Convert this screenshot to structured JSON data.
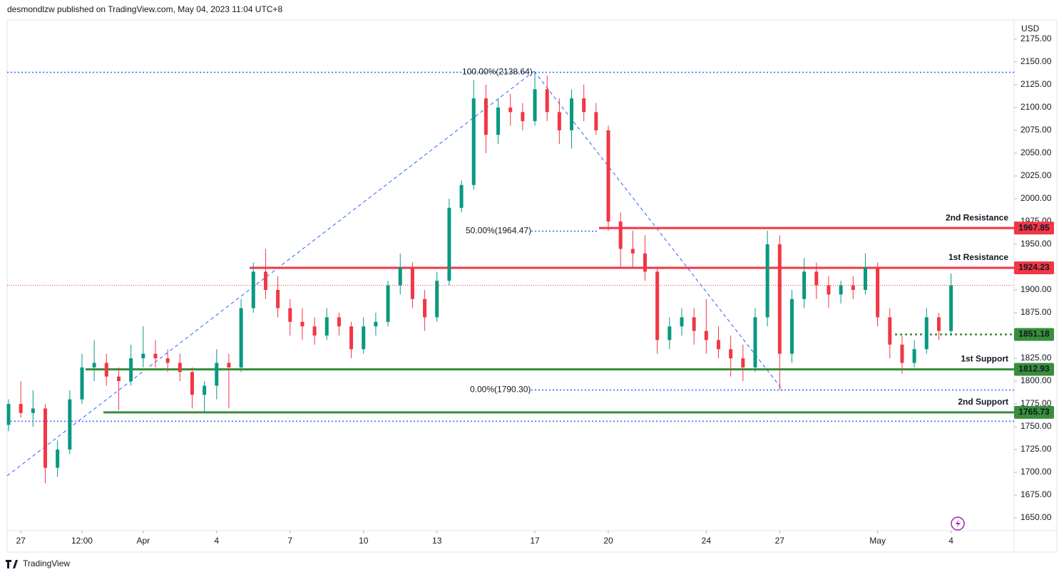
{
  "chart_data": {
    "type": "candlestick",
    "header": "desmondlzw published on TradingView.com, May 04, 2023 11:04 UTC+8",
    "currency": "USD",
    "brand": "TradingView",
    "up_color": "#089981",
    "down_color": "#f23645",
    "ylim": [
      1636,
      2196
    ],
    "yticks": [
      {
        "value": 1650,
        "label": "1650.00"
      },
      {
        "value": 1675,
        "label": "1675.00"
      },
      {
        "value": 1700,
        "label": "1700.00"
      },
      {
        "value": 1725,
        "label": "1725.00"
      },
      {
        "value": 1750,
        "label": "1750.00"
      },
      {
        "value": 1775,
        "label": "1775.00"
      },
      {
        "value": 1800,
        "label": "1800.00"
      },
      {
        "value": 1825,
        "label": "1825.00"
      },
      {
        "value": 1850,
        "label": "1850.00"
      },
      {
        "value": 1875,
        "label": "1875.00"
      },
      {
        "value": 1900,
        "label": "1900.00"
      },
      {
        "value": 1925,
        "label": "1925.00"
      },
      {
        "value": 1950,
        "label": "1950.00"
      },
      {
        "value": 1975,
        "label": "1975.00"
      },
      {
        "value": 2000,
        "label": "2000.00"
      },
      {
        "value": 2025,
        "label": "2025.00"
      },
      {
        "value": 2050,
        "label": "2050.00"
      },
      {
        "value": 2075,
        "label": "2075.00"
      },
      {
        "value": 2100,
        "label": "2100.00"
      },
      {
        "value": 2125,
        "label": "2125.00"
      },
      {
        "value": 2150,
        "label": "2150.00"
      },
      {
        "value": 2175,
        "label": "2175.00"
      }
    ],
    "xlim": [
      0,
      82.5
    ],
    "xticks": [
      {
        "value": 1,
        "label": "27"
      },
      {
        "value": 6,
        "label": "12:00"
      },
      {
        "value": 11,
        "label": "Apr"
      },
      {
        "value": 17,
        "label": "4"
      },
      {
        "value": 23,
        "label": "7"
      },
      {
        "value": 29,
        "label": "10"
      },
      {
        "value": 35,
        "label": "13"
      },
      {
        "value": 43,
        "label": "17"
      },
      {
        "value": 49,
        "label": "20"
      },
      {
        "value": 57,
        "label": "24"
      },
      {
        "value": 63,
        "label": "27"
      },
      {
        "value": 71,
        "label": "May"
      },
      {
        "value": 77,
        "label": "4"
      }
    ],
    "candles": {
      "open": [
        1752,
        1775,
        1765,
        1770,
        1705,
        1725,
        1780,
        1815,
        1820,
        1805,
        1800,
        1825,
        1830,
        1825,
        1820,
        1810,
        1785,
        1795,
        1820,
        1815,
        1880,
        1920,
        1900,
        1880,
        1865,
        1860,
        1850,
        1870,
        1860,
        1835,
        1860,
        1865,
        1905,
        1925,
        1890,
        1870,
        1910,
        1990,
        2015,
        2110,
        2070,
        2100,
        2095,
        2085,
        2120,
        2095,
        2075,
        2110,
        2095,
        2075,
        1975,
        1945,
        1940,
        1920,
        1845,
        1860,
        1870,
        1855,
        1845,
        1835,
        1825,
        1815,
        1870,
        1950,
        1830,
        1890,
        1920,
        1905,
        1895,
        1905,
        1900,
        1925,
        1870,
        1840,
        1820,
        1835,
        1870,
        1855
      ],
      "high": [
        1780,
        1800,
        1790,
        1775,
        1735,
        1790,
        1830,
        1845,
        1830,
        1815,
        1840,
        1860,
        1845,
        1835,
        1830,
        1815,
        1800,
        1835,
        1830,
        1890,
        1930,
        1945,
        1915,
        1890,
        1880,
        1870,
        1880,
        1875,
        1865,
        1870,
        1875,
        1910,
        1940,
        1930,
        1900,
        1920,
        2000,
        2020,
        2130,
        2125,
        2110,
        2115,
        2105,
        2138.64,
        2135,
        2110,
        2120,
        2125,
        2105,
        2080,
        1985,
        1965,
        1960,
        1925,
        1870,
        1880,
        1880,
        1890,
        1860,
        1850,
        1840,
        1880,
        1965,
        1960,
        1900,
        1935,
        1930,
        1915,
        1910,
        1915,
        1940,
        1930,
        1880,
        1850,
        1845,
        1880,
        1875,
        1918
      ],
      "low": [
        1745,
        1760,
        1750,
        1688,
        1695,
        1720,
        1775,
        1800,
        1795,
        1768,
        1795,
        1815,
        1815,
        1810,
        1800,
        1770,
        1765,
        1780,
        1770,
        1810,
        1875,
        1890,
        1870,
        1850,
        1845,
        1840,
        1845,
        1850,
        1825,
        1830,
        1850,
        1860,
        1895,
        1880,
        1855,
        1865,
        1905,
        1985,
        2010,
        2050,
        2060,
        2080,
        2075,
        2080,
        2085,
        2060,
        2055,
        2085,
        2070,
        1965,
        1925,
        1925,
        1910,
        1830,
        1835,
        1850,
        1840,
        1830,
        1825,
        1805,
        1800,
        1810,
        1860,
        1790.3,
        1820,
        1880,
        1890,
        1880,
        1885,
        1890,
        1895,
        1860,
        1825,
        1808,
        1815,
        1830,
        1845,
        1850
      ],
      "close": [
        1775,
        1765,
        1770,
        1705,
        1725,
        1780,
        1815,
        1820,
        1805,
        1800,
        1825,
        1830,
        1825,
        1820,
        1810,
        1785,
        1795,
        1820,
        1815,
        1880,
        1920,
        1900,
        1880,
        1865,
        1860,
        1850,
        1870,
        1860,
        1835,
        1860,
        1865,
        1905,
        1925,
        1890,
        1870,
        1910,
        1990,
        2015,
        2110,
        2070,
        2100,
        2095,
        2085,
        2120,
        2095,
        2075,
        2110,
        2095,
        2075,
        1975,
        1945,
        1940,
        1920,
        1845,
        1860,
        1870,
        1855,
        1845,
        1835,
        1825,
        1815,
        1870,
        1950,
        1830,
        1890,
        1920,
        1905,
        1895,
        1905,
        1900,
        1925,
        1870,
        1840,
        1820,
        1835,
        1870,
        1855,
        1905
      ]
    },
    "levels": [
      {
        "name": "2nd Resistance",
        "value": 1967.85,
        "color": "#f23645"
      },
      {
        "name": "1st Resistance",
        "value": 1924.23,
        "color": "#f23645"
      },
      {
        "value": 1851.18,
        "color": "#388e3c"
      },
      {
        "name": "1st Support",
        "value": 1812.93,
        "color": "#388e3c"
      },
      {
        "name": "2nd Support",
        "value": 1765.73,
        "color": "#388e3c"
      }
    ],
    "fib": [
      {
        "label": "100.00%(2138.64)",
        "value": 2138.64
      },
      {
        "label": "50.00%(1964.47)",
        "value": 1964.47
      },
      {
        "label": "0.00%(1790.30)",
        "value": 1790.3
      }
    ],
    "extra_line": {
      "value": 1756,
      "color": "#2962ff"
    }
  }
}
